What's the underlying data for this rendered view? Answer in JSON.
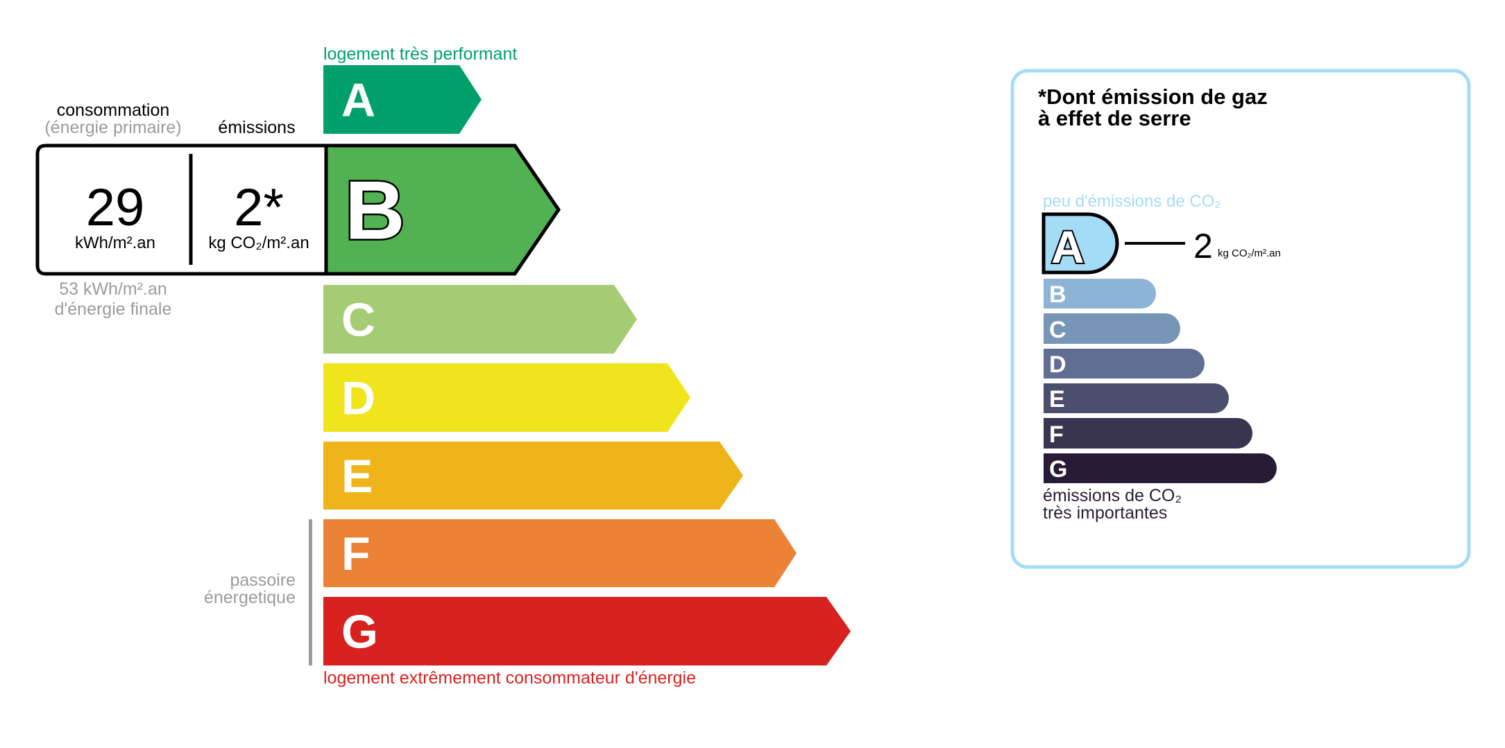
{
  "energy": {
    "top_label": "logement très performant",
    "bottom_label": "logement extrêmement consommateur d'énergie",
    "top_color": "#00a06d",
    "bottom_color": "#d7221f",
    "current_class": "B",
    "classes": [
      {
        "letter": "A",
        "color": "#00a06d"
      },
      {
        "letter": "B",
        "color": "#52b153"
      },
      {
        "letter": "C",
        "color": "#a5cc74"
      },
      {
        "letter": "D",
        "color": "#f0e51c"
      },
      {
        "letter": "E",
        "color": "#efb41a"
      },
      {
        "letter": "F",
        "color": "#eb8235"
      },
      {
        "letter": "G",
        "color": "#d7221f"
      }
    ],
    "passoire_line1": "passoire",
    "passoire_line2": "énergetique"
  },
  "readout": {
    "consumption_title": "consommation",
    "consumption_subtitle": "(énergie primaire)",
    "emissions_title": "émissions",
    "consumption_value": "29",
    "consumption_unit": "kWh/m².an",
    "emissions_value": "2*",
    "emissions_unit": "kg CO₂/m².an",
    "final_energy_line1": "53 kWh/m².an",
    "final_energy_line2": "d'énergie finale"
  },
  "ghg": {
    "title_line1": "*Dont émission de gaz",
    "title_line2": "à effet de serre",
    "top_label": "peu d'émissions de CO₂",
    "bottom_label_line1": "émissions de CO₂",
    "bottom_label_line2": "très importantes",
    "current_class": "A",
    "value": "2",
    "unit": "kg CO₂/m².an",
    "border_color": "#a4dbf6",
    "classes": [
      {
        "letter": "A",
        "color": "#a4dbf6"
      },
      {
        "letter": "B",
        "color": "#8db4d6"
      },
      {
        "letter": "C",
        "color": "#7796b7"
      },
      {
        "letter": "D",
        "color": "#5f6e92"
      },
      {
        "letter": "E",
        "color": "#4c4e6e"
      },
      {
        "letter": "F",
        "color": "#393551"
      },
      {
        "letter": "G",
        "color": "#281b35"
      }
    ]
  }
}
